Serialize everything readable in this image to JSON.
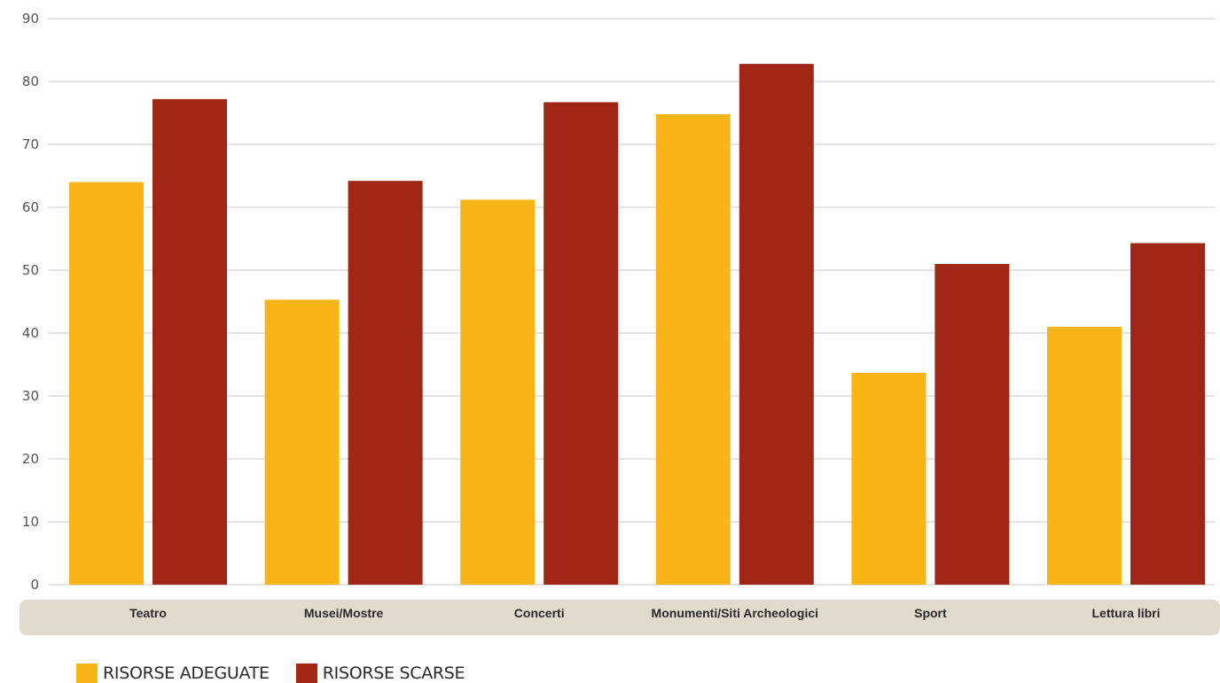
{
  "chart_data": {
    "type": "bar",
    "title": "",
    "xlabel": "",
    "ylabel": "",
    "ylim": [
      0,
      90
    ],
    "yticks": [
      0,
      10,
      20,
      30,
      40,
      50,
      60,
      70,
      80,
      90
    ],
    "grid": true,
    "legend_position": "bottom-left",
    "categories": [
      "Teatro",
      "Musei/Mostre",
      "Concerti",
      "Monumenti/Siti Archeologici",
      "Sport",
      "Lettura libri"
    ],
    "series": [
      {
        "name": "RISORSE ADEGUATE",
        "color": "#F9B518",
        "values": [
          64,
          45.3,
          61.2,
          74.8,
          33.7,
          41
        ]
      },
      {
        "name": "RISORSE SCARSE",
        "color": "#A02616",
        "values": [
          77.2,
          64.2,
          76.7,
          82.8,
          51,
          54.3
        ]
      }
    ],
    "category_band_color": "#E0DBCC",
    "gridline_color": "#C8C8C8"
  }
}
